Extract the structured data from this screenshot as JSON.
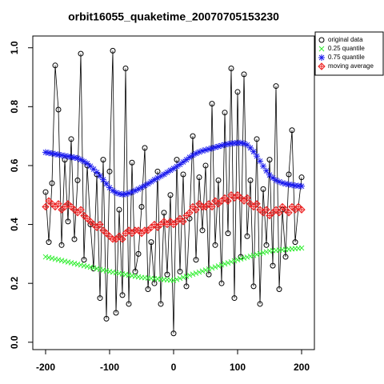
{
  "chart_data": {
    "type": "line",
    "title": "orbit16055_quaketime_20070705153230",
    "x": [
      -200,
      -195,
      -190,
      -185,
      -180,
      -175,
      -170,
      -165,
      -160,
      -155,
      -150,
      -145,
      -140,
      -135,
      -130,
      -125,
      -120,
      -115,
      -110,
      -105,
      -100,
      -95,
      -90,
      -85,
      -80,
      -75,
      -70,
      -65,
      -60,
      -55,
      -50,
      -45,
      -40,
      -35,
      -30,
      -25,
      -20,
      -15,
      -10,
      -5,
      0,
      5,
      10,
      15,
      20,
      25,
      30,
      35,
      40,
      45,
      50,
      55,
      60,
      65,
      70,
      75,
      80,
      85,
      90,
      95,
      100,
      105,
      110,
      115,
      120,
      125,
      130,
      135,
      140,
      145,
      150,
      155,
      160,
      165,
      170,
      175,
      180,
      185,
      190,
      195,
      200
    ],
    "series": [
      {
        "name": "original data",
        "color": "#000000",
        "marker": "circle",
        "line": true,
        "values": [
          0.51,
          0.34,
          0.54,
          0.94,
          0.79,
          0.33,
          0.62,
          0.41,
          0.69,
          0.35,
          0.55,
          0.98,
          0.28,
          0.6,
          0.4,
          0.25,
          0.57,
          0.15,
          0.62,
          0.08,
          0.58,
          0.99,
          0.1,
          0.45,
          0.16,
          0.93,
          0.13,
          0.61,
          0.24,
          0.3,
          0.46,
          0.66,
          0.18,
          0.34,
          0.2,
          0.58,
          0.13,
          0.44,
          0.23,
          0.5,
          0.03,
          0.62,
          0.24,
          0.57,
          0.19,
          0.42,
          0.7,
          0.28,
          0.56,
          0.38,
          0.6,
          0.23,
          0.81,
          0.33,
          0.55,
          0.2,
          0.78,
          0.37,
          0.93,
          0.15,
          0.85,
          0.29,
          0.91,
          0.36,
          0.55,
          0.19,
          0.69,
          0.13,
          0.52,
          0.33,
          0.62,
          0.26,
          0.87,
          0.18,
          0.45,
          0.29,
          0.57,
          0.72,
          0.34,
          0.46,
          0.56
        ]
      },
      {
        "name": "0.25 quantile",
        "color": "#33ee33",
        "marker": "x",
        "line": false,
        "values": [
          0.29,
          0.2875,
          0.285,
          0.2825,
          0.28,
          0.2775,
          0.275,
          0.2725,
          0.27,
          0.2675,
          0.265,
          0.2625,
          0.26,
          0.2575,
          0.255,
          0.2525,
          0.25,
          0.2475,
          0.245,
          0.2425,
          0.24,
          0.238,
          0.236,
          0.234,
          0.232,
          0.23,
          0.228,
          0.226,
          0.224,
          0.222,
          0.22,
          0.219,
          0.218,
          0.217,
          0.216,
          0.215,
          0.214,
          0.213,
          0.212,
          0.211,
          0.21,
          0.2135,
          0.217,
          0.2205,
          0.224,
          0.2275,
          0.231,
          0.2345,
          0.238,
          0.2415,
          0.245,
          0.2485,
          0.252,
          0.2555,
          0.259,
          0.2625,
          0.266,
          0.2695,
          0.273,
          0.2765,
          0.28,
          0.283,
          0.286,
          0.289,
          0.292,
          0.295,
          0.298,
          0.301,
          0.304,
          0.307,
          0.31,
          0.311,
          0.312,
          0.313,
          0.314,
          0.315,
          0.316,
          0.317,
          0.318,
          0.319,
          0.32
        ]
      },
      {
        "name": "0.75 quantile",
        "color": "#1a1aee",
        "marker": "asterisk",
        "line": false,
        "values": [
          0.645,
          0.643,
          0.641,
          0.639,
          0.637,
          0.635,
          0.633,
          0.631,
          0.629,
          0.627,
          0.625,
          0.62,
          0.614,
          0.607,
          0.598,
          0.588,
          0.577,
          0.565,
          0.552,
          0.538,
          0.525,
          0.515,
          0.508,
          0.504,
          0.502,
          0.503,
          0.506,
          0.51,
          0.515,
          0.52,
          0.526,
          0.532,
          0.538,
          0.545,
          0.552,
          0.558,
          0.564,
          0.57,
          0.577,
          0.584,
          0.59,
          0.597,
          0.604,
          0.612,
          0.62,
          0.628,
          0.635,
          0.641,
          0.646,
          0.65,
          0.653,
          0.656,
          0.659,
          0.662,
          0.665,
          0.668,
          0.671,
          0.673,
          0.675,
          0.676,
          0.677,
          0.677,
          0.675,
          0.67,
          0.66,
          0.647,
          0.632,
          0.615,
          0.598,
          0.582,
          0.568,
          0.558,
          0.55,
          0.545,
          0.541,
          0.538,
          0.536,
          0.534,
          0.532,
          0.531,
          0.53
        ]
      },
      {
        "name": "moving average",
        "color": "#ee2222",
        "marker": "diamond-plus",
        "line": false,
        "values": [
          0.46,
          0.48,
          0.47,
          0.46,
          0.47,
          0.45,
          0.46,
          0.47,
          0.46,
          0.45,
          0.44,
          0.45,
          0.43,
          0.42,
          0.41,
          0.4,
          0.39,
          0.4,
          0.38,
          0.37,
          0.36,
          0.35,
          0.35,
          0.36,
          0.35,
          0.37,
          0.38,
          0.37,
          0.38,
          0.38,
          0.37,
          0.38,
          0.38,
          0.39,
          0.4,
          0.39,
          0.4,
          0.41,
          0.4,
          0.41,
          0.4,
          0.41,
          0.42,
          0.41,
          0.43,
          0.44,
          0.46,
          0.45,
          0.47,
          0.46,
          0.46,
          0.47,
          0.46,
          0.48,
          0.47,
          0.48,
          0.49,
          0.48,
          0.5,
          0.49,
          0.5,
          0.49,
          0.48,
          0.49,
          0.47,
          0.46,
          0.47,
          0.45,
          0.44,
          0.45,
          0.43,
          0.44,
          0.45,
          0.44,
          0.46,
          0.45,
          0.44,
          0.46,
          0.45,
          0.46,
          0.45
        ]
      }
    ],
    "xlim": [
      -220,
      220
    ],
    "ylim": [
      -0.025,
      1.04
    ],
    "xticks": [
      -200,
      -100,
      0,
      100,
      200
    ],
    "yticks": [
      {
        "value": 0,
        "label": "0.0"
      },
      0.2,
      0.4,
      0.6,
      0.8,
      {
        "value": 1,
        "label": "1.0"
      }
    ],
    "grid": false,
    "legend_position": "right"
  }
}
